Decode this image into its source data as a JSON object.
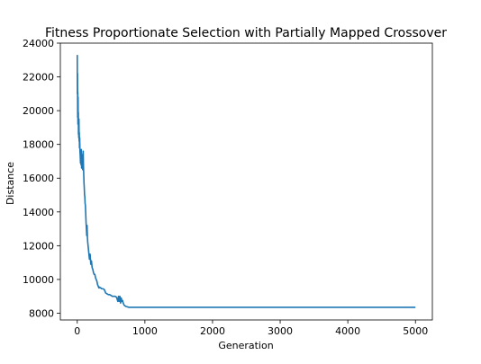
{
  "chart_data": {
    "type": "line",
    "title": "Fitness Proportionate Selection with Partially Mapped Crossover",
    "xlabel": "Generation",
    "ylabel": "Distance",
    "xlim": [
      -250,
      5250
    ],
    "ylim": [
      7600,
      24000
    ],
    "xticks": [
      0,
      1000,
      2000,
      3000,
      4000,
      5000
    ],
    "xtick_labels": [
      "0",
      "1000",
      "2000",
      "3000",
      "4000",
      "5000"
    ],
    "yticks": [
      8000,
      10000,
      12000,
      14000,
      16000,
      18000,
      20000,
      22000,
      24000
    ],
    "ytick_labels": [
      "8000",
      "10000",
      "12000",
      "14000",
      "16000",
      "18000",
      "20000",
      "22000",
      "24000"
    ],
    "grid": false,
    "line_color": "#1f77b4",
    "series": [
      {
        "x": [
          0,
          2,
          4,
          6,
          8,
          10,
          12,
          14,
          16,
          18,
          20,
          22,
          25,
          28,
          30,
          33,
          36,
          40,
          44,
          48,
          52,
          56,
          60,
          64,
          68,
          72,
          76,
          80,
          84,
          88,
          92,
          96,
          100,
          104,
          108,
          112,
          116,
          120,
          125,
          130,
          135,
          140,
          145,
          150,
          155,
          160,
          170,
          180,
          190,
          200,
          210,
          220,
          230,
          240,
          250,
          260,
          270,
          280,
          290,
          300,
          310,
          320,
          330,
          340,
          350,
          360,
          380,
          400,
          420,
          440,
          460,
          480,
          500,
          520,
          540,
          560,
          580,
          600,
          610,
          620,
          630,
          640,
          650,
          660,
          670,
          680,
          690,
          700,
          720,
          740,
          760,
          780,
          800,
          1000,
          2000,
          3000,
          4000,
          5000
        ],
        "y": [
          23300,
          21000,
          22200,
          19600,
          21100,
          19200,
          20800,
          19400,
          19900,
          18600,
          19100,
          18400,
          19500,
          18200,
          18700,
          17800,
          18400,
          17600,
          17300,
          16900,
          17500,
          16800,
          17700,
          16600,
          17400,
          16700,
          17200,
          16500,
          16900,
          17600,
          16700,
          16200,
          15700,
          15400,
          15000,
          14900,
          14500,
          14400,
          13900,
          13400,
          13000,
          12600,
          13200,
          12500,
          12200,
          12000,
          11600,
          11200,
          11500,
          10900,
          11100,
          10700,
          10600,
          10400,
          10300,
          10300,
          10100,
          10000,
          9900,
          9700,
          9600,
          9500,
          9550,
          9500,
          9500,
          9450,
          9450,
          9400,
          9200,
          9150,
          9100,
          9100,
          9050,
          9000,
          9000,
          9000,
          8950,
          8700,
          9000,
          8700,
          9000,
          8600,
          8900,
          8700,
          8750,
          8600,
          8500,
          8450,
          8400,
          8380,
          8350,
          8350,
          8350,
          8350,
          8350,
          8350,
          8350,
          8350
        ]
      }
    ]
  }
}
